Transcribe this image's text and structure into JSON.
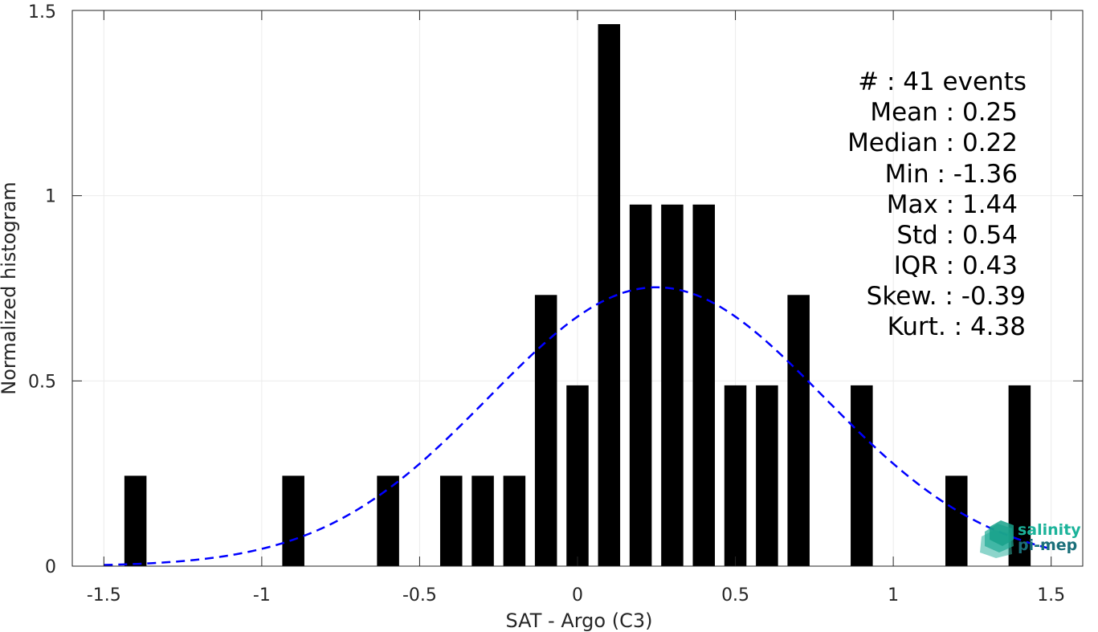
{
  "chart_data": {
    "type": "bar",
    "xlabel": "SAT - Argo (C3)",
    "ylabel": "Normalized histogram",
    "xlim": [
      -1.6,
      1.6
    ],
    "ylim": [
      0,
      1.5
    ],
    "xticks": [
      -1.5,
      -1,
      -0.5,
      0,
      0.5,
      1,
      1.5
    ],
    "xtick_labels": [
      "-1.5",
      "-1",
      "-0.5",
      "0",
      "0.5",
      "1",
      "1.5"
    ],
    "yticks": [
      0,
      0.5,
      1,
      1.5
    ],
    "ytick_labels": [
      "0",
      "0.5",
      "1",
      "1.5"
    ],
    "grid": true,
    "bin_width": 0.07,
    "bars": [
      {
        "x": -1.4,
        "y": 0.244
      },
      {
        "x": -0.9,
        "y": 0.244
      },
      {
        "x": -0.6,
        "y": 0.244
      },
      {
        "x": -0.4,
        "y": 0.244
      },
      {
        "x": -0.3,
        "y": 0.244
      },
      {
        "x": -0.2,
        "y": 0.244
      },
      {
        "x": -0.1,
        "y": 0.732
      },
      {
        "x": 0.0,
        "y": 0.488
      },
      {
        "x": 0.1,
        "y": 1.463
      },
      {
        "x": 0.2,
        "y": 0.976
      },
      {
        "x": 0.3,
        "y": 0.976
      },
      {
        "x": 0.4,
        "y": 0.976
      },
      {
        "x": 0.5,
        "y": 0.488
      },
      {
        "x": 0.6,
        "y": 0.488
      },
      {
        "x": 0.7,
        "y": 0.732
      },
      {
        "x": 0.9,
        "y": 0.488
      },
      {
        "x": 1.2,
        "y": 0.244
      },
      {
        "x": 1.4,
        "y": 0.488
      }
    ],
    "fit_curve": {
      "type": "normal",
      "mean": 0.25,
      "std": 0.53,
      "x_range": [
        -1.5,
        1.5
      ],
      "color": "#0000ff",
      "style": "dashed"
    },
    "bar_color": "#000000",
    "annotations": [
      "#  : 41 events",
      "Mean : 0.25",
      "Median : 0.22",
      "Min : -1.36",
      "Max : 1.44",
      "Std : 0.54",
      "IQR : 0.43",
      "Skew. : -0.39",
      "Kurt. : 4.38"
    ]
  },
  "logo": {
    "line1": "salinity",
    "line2": "pi-mep",
    "color1": "#1bb39a",
    "color2": "#1a6f7a"
  }
}
